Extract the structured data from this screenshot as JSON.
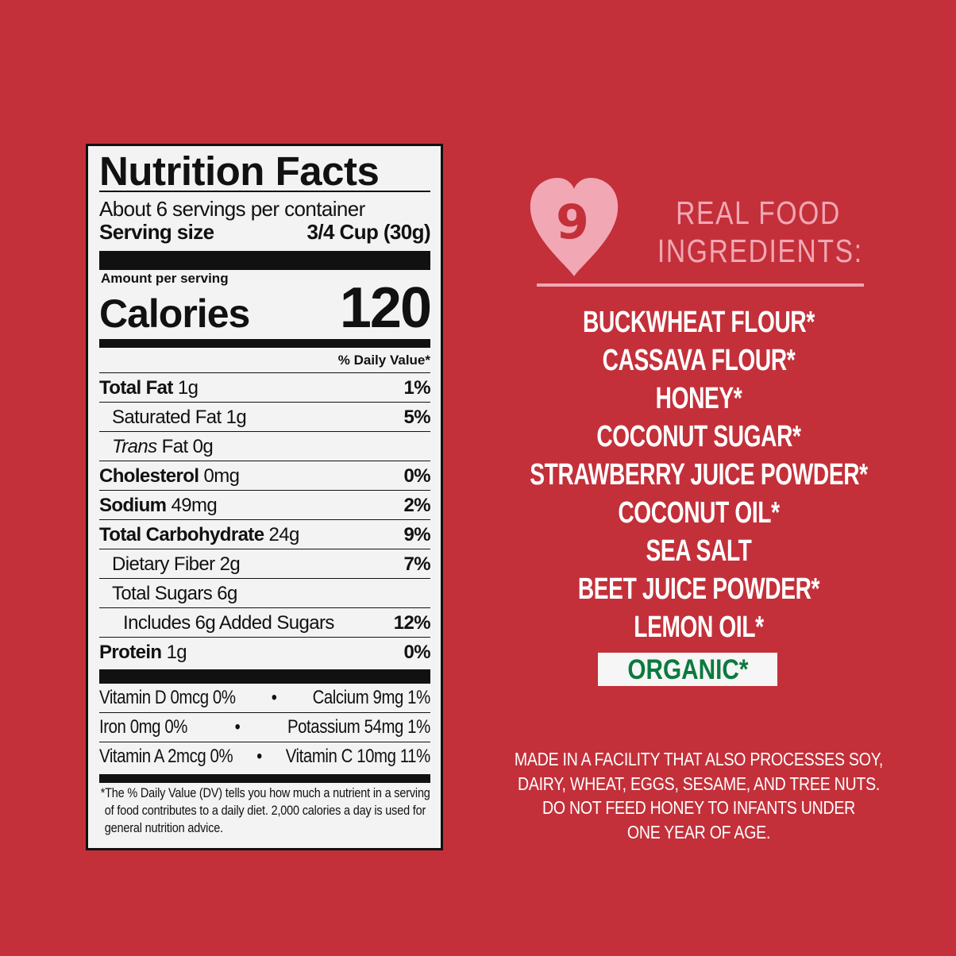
{
  "nutrition": {
    "title": "Nutrition Facts",
    "servings": "About 6 servings per container",
    "serving_size_label": "Serving size",
    "serving_size_value": "3/4 Cup (30g)",
    "amount_per_serving": "Amount per serving",
    "calories_label": "Calories",
    "calories_value": "120",
    "dv_header": "% Daily Value*",
    "rows": [
      {
        "name": "Total Fat",
        "amount": "1g",
        "dv": "1%"
      },
      {
        "name": "Saturated Fat 1g",
        "amount": "",
        "dv": "5%"
      },
      {
        "name": "Trans",
        "amount": "Fat 0g",
        "dv": ""
      },
      {
        "name": "Cholesterol",
        "amount": "0mg",
        "dv": "0%"
      },
      {
        "name": "Sodium",
        "amount": "49mg",
        "dv": "2%"
      },
      {
        "name": "Total Carbohydrate",
        "amount": "24g",
        "dv": "9%"
      },
      {
        "name": "Dietary Fiber 2g",
        "amount": "",
        "dv": "7%"
      },
      {
        "name": "Total Sugars 6g",
        "amount": "",
        "dv": ""
      },
      {
        "name": "Includes 6g Added Sugars",
        "amount": "",
        "dv": "12%"
      },
      {
        "name": "Protein",
        "amount": "1g",
        "dv": "0%"
      }
    ],
    "vitamins": [
      {
        "left": "Vitamin D 0mcg 0%",
        "right": "Calcium 9mg 1%"
      },
      {
        "left": "Iron 0mg 0%",
        "right": "Potassium 54mg 1%"
      },
      {
        "left": "Vitamin A 2mcg 0%",
        "right": "Vitamin C 10mg 11%"
      }
    ],
    "bullet": "•",
    "footnote": "*The % Daily Value (DV) tells you how much a nutrient in a serving of food contributes to a daily diet. 2,000 calories a day is used for general nutrition advice."
  },
  "ingredients": {
    "badge_number": "9",
    "heading_line1": "REAL FOOD",
    "heading_line2": "INGREDIENTS:",
    "items": [
      "BUCKWHEAT FLOUR*",
      "CASSAVA FLOUR*",
      "HONEY*",
      "COCONUT SUGAR*",
      "STRAWBERRY JUICE POWDER*",
      "COCONUT OIL*",
      "SEA SALT",
      "BEET JUICE POWDER*",
      "LEMON OIL*"
    ],
    "organic_label": "ORGANIC*",
    "warning_lines": [
      "MADE IN A FACILITY THAT ALSO PROCESSES SOY,",
      "DAIRY, WHEAT, EGGS, SESAME, AND TREE NUTS.",
      "DO NOT FEED HONEY TO INFANTS UNDER",
      "ONE YEAR OF AGE."
    ]
  },
  "colors": {
    "background": "#c3303a",
    "heart": "#f2a7b4",
    "organic_green": "#0b7a3e"
  }
}
